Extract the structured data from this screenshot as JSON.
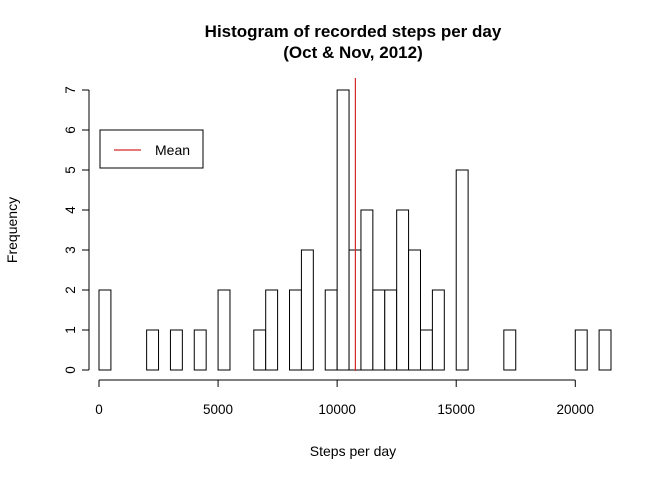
{
  "chart_data": {
    "type": "bar",
    "title": "Histogram of recorded steps per day",
    "subtitle": "(Oct & Nov, 2012)",
    "xlabel": "Steps per day",
    "ylabel": "Frequency",
    "bin_width": 500,
    "bin_start": 0,
    "counts": [
      2,
      0,
      0,
      0,
      1,
      0,
      1,
      0,
      1,
      0,
      2,
      0,
      0,
      1,
      2,
      0,
      2,
      3,
      0,
      2,
      7,
      3,
      4,
      2,
      2,
      4,
      3,
      1,
      2,
      0,
      5,
      0,
      0,
      0,
      1,
      0,
      0,
      0,
      0,
      0,
      1,
      0,
      1
    ],
    "xlim": [
      0,
      21500
    ],
    "ylim": [
      0,
      7
    ],
    "xticks": [
      0,
      5000,
      10000,
      15000,
      20000
    ],
    "xtick_labels": [
      "0",
      "5000",
      "10000",
      "15000",
      "20000"
    ],
    "yticks": [
      0,
      1,
      2,
      3,
      4,
      5,
      6,
      7
    ],
    "ytick_labels": [
      "0",
      "1",
      "2",
      "3",
      "4",
      "5",
      "6",
      "7"
    ],
    "mean_line": {
      "value": 10766,
      "color": "#d62728"
    },
    "legend": {
      "label": "Mean",
      "position": "top-left",
      "color": "#d62728"
    },
    "bar_fill": "#ffffff",
    "bar_stroke": "#000000",
    "grid": false
  }
}
